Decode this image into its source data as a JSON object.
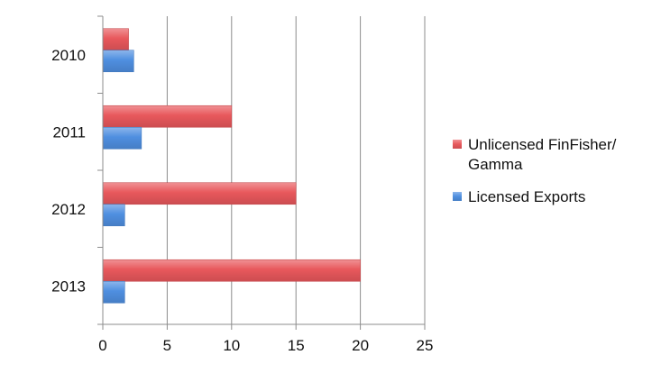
{
  "chart_data": {
    "type": "bar",
    "orientation": "horizontal",
    "categories": [
      "2010",
      "2011",
      "2012",
      "2013"
    ],
    "series": [
      {
        "name": "Unlicensed FinFisher/ Gamma",
        "color": "#e8585c",
        "values": [
          2,
          10,
          15,
          20
        ]
      },
      {
        "name": "Licensed Exports",
        "color": "#4f8fe0",
        "values": [
          2.4,
          3,
          1.7,
          1.7
        ]
      }
    ],
    "xlim": [
      0,
      25
    ],
    "xticks": [
      "0",
      "5",
      "10",
      "15",
      "20",
      "25"
    ],
    "grid": true,
    "legend": "right",
    "title": "",
    "xlabel": "",
    "ylabel": ""
  }
}
